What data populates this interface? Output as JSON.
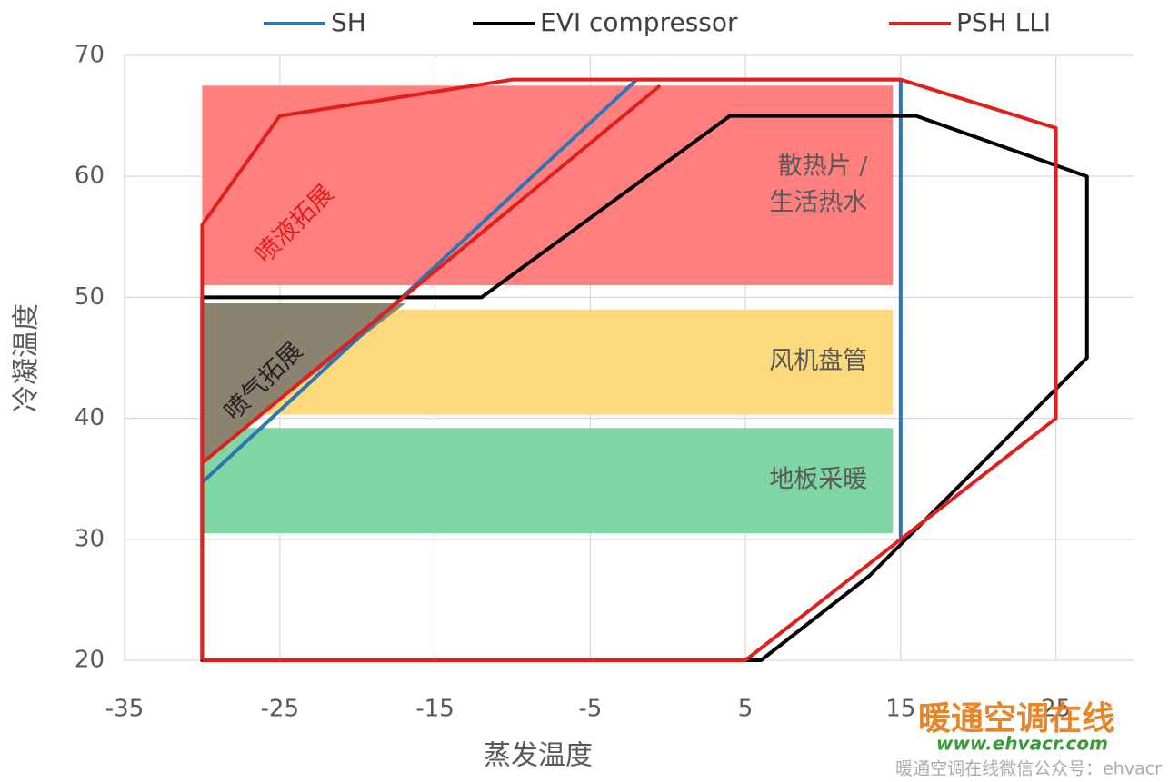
{
  "chart_data": {
    "type": "line",
    "xlabel": "蒸发温度",
    "ylabel": "冷凝温度",
    "xlim": [
      -35,
      30
    ],
    "ylim": [
      20,
      70
    ],
    "xticks": [
      -35,
      -25,
      -15,
      -5,
      5,
      15,
      25
    ],
    "yticks": [
      20,
      30,
      40,
      50,
      60,
      70
    ],
    "grid": true,
    "legend": "top",
    "regions": [
      {
        "label": [
          "散热片 /",
          "生活热水"
        ],
        "color": "#ff7f7f",
        "x": [
          -30,
          14.5
        ],
        "y": [
          51,
          67.5
        ]
      },
      {
        "label": [
          "风机盘管"
        ],
        "color": "#fcd97c",
        "x": [
          -30,
          14.5
        ],
        "y": [
          40.3,
          49
        ]
      },
      {
        "label": [
          "地板采暖"
        ],
        "color": "#7fd5a3",
        "x": [
          -30,
          14.5
        ],
        "y": [
          30.5,
          39.2
        ]
      }
    ],
    "series": [
      {
        "name": "SH",
        "color": "#2e75b6",
        "x": [
          -30,
          -2,
          15,
          15
        ],
        "values": [
          34.7,
          68,
          68,
          30
        ]
      },
      {
        "name": "EVI compressor",
        "color": "#000000",
        "x": [
          -30,
          -12,
          4,
          16,
          27,
          27,
          13,
          6,
          -30,
          -30
        ],
        "values": [
          50,
          50,
          65,
          65,
          60,
          45,
          27,
          20,
          20,
          50
        ]
      },
      {
        "name": "PSH LLI",
        "color": "#e0201c",
        "x": [
          -30,
          -30,
          -25,
          -10,
          15,
          25,
          25,
          15,
          5,
          -30,
          null,
          -30,
          -0.5
        ],
        "values": [
          20,
          56,
          65,
          68,
          68,
          64,
          40,
          30,
          20,
          20,
          null,
          36.3,
          67.5
        ]
      }
    ],
    "annotations": [
      {
        "text": "喷液拓展",
        "x": -24,
        "y": 56,
        "color": "#e0201c"
      },
      {
        "text": "喷气拓展",
        "x": -26,
        "y": 43,
        "color": "#222222"
      }
    ],
    "watermark": [
      "暖通空调在线",
      "www.ehvacr.com",
      "暖通空调在线微信公众号：ehvacr"
    ]
  }
}
